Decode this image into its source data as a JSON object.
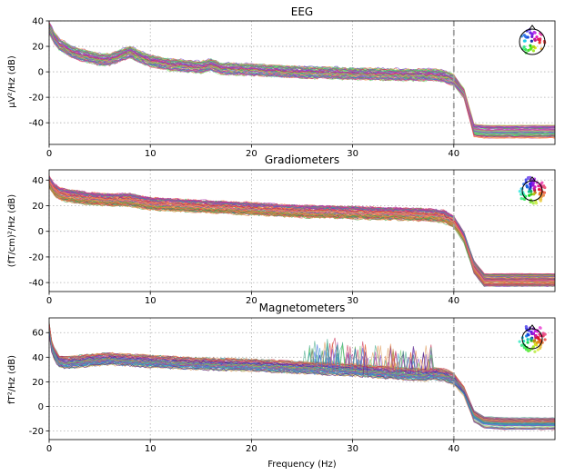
{
  "chart_data": [
    {
      "type": "line",
      "title": "EEG",
      "ylabel": "µV²/Hz (dB)",
      "xlabel": "",
      "xlim": [
        0,
        50
      ],
      "ylim": [
        -57,
        40
      ],
      "xticks": [
        0,
        10,
        20,
        30,
        40
      ],
      "yticks": [
        -40,
        -20,
        0,
        20,
        40
      ],
      "grid": true,
      "marker_x": 40,
      "legend": "topomap sensor-position inset, top-right",
      "traces": 60,
      "palette": [
        "#2ecc40",
        "#7fe07a",
        "#44bb77",
        "#ff8844",
        "#7744cc",
        "#cc2266",
        "#4466ee",
        "#aa33cc",
        "#99dd66",
        "#dd4488"
      ],
      "profile": {
        "x": [
          0,
          0.5,
          1,
          2,
          3,
          4,
          5,
          6,
          7,
          8,
          9,
          10,
          12,
          15,
          16,
          17,
          20,
          25,
          30,
          35,
          38,
          39,
          40,
          41,
          42,
          43,
          45,
          50
        ],
        "y": [
          33,
          25,
          20,
          15,
          12,
          10,
          8,
          8,
          11,
          14,
          10,
          7,
          4,
          2,
          4,
          1,
          0,
          -2,
          -3,
          -4,
          -4,
          -5,
          -8,
          -18,
          -46,
          -47,
          -47,
          -47
        ]
      },
      "spread_low": -3,
      "spread_high": 6
    },
    {
      "type": "line",
      "title": "Gradiometers",
      "ylabel": "(fT/cm)²/Hz (dB)",
      "xlabel": "",
      "xlim": [
        0,
        50
      ],
      "ylim": [
        -47,
        48
      ],
      "xticks": [
        0,
        10,
        20,
        30,
        40
      ],
      "yticks": [
        -40,
        -20,
        0,
        20,
        40
      ],
      "grid": true,
      "marker_x": 40,
      "legend": "topomap sensor-position inset, top-right",
      "traces": 80,
      "palette": [
        "#cc2244",
        "#ee6655",
        "#ff9966",
        "#dd8833",
        "#44aa44",
        "#6644cc",
        "#aa33aa",
        "#33aa99",
        "#cc4488",
        "#ee8844"
      ],
      "profile": {
        "x": [
          0,
          0.5,
          1,
          2,
          4,
          6,
          8,
          10,
          15,
          20,
          25,
          30,
          35,
          38,
          39,
          40,
          41,
          42,
          43,
          45,
          50
        ],
        "y": [
          38,
          32,
          29,
          27,
          25,
          24,
          24,
          21,
          19,
          17,
          15,
          14,
          13,
          12,
          11,
          7,
          -5,
          -28,
          -38,
          -38,
          -38
        ]
      },
      "spread_low": -4,
      "spread_high": 5
    },
    {
      "type": "line",
      "title": "Magnetometers",
      "ylabel": "fT²/Hz (dB)",
      "xlabel": "Frequency (Hz)",
      "xlim": [
        0,
        50
      ],
      "ylim": [
        -27,
        72
      ],
      "xticks": [
        0,
        10,
        20,
        30,
        40
      ],
      "yticks": [
        -20,
        0,
        20,
        40,
        60
      ],
      "grid": true,
      "marker_x": 40,
      "legend": "topomap sensor-position inset, top-right",
      "traces": 60,
      "palette": [
        "#7744cc",
        "#3366dd",
        "#ee8844",
        "#44aa88",
        "#cc3355",
        "#66cc66",
        "#aa44aa",
        "#3399cc",
        "#dd9955",
        "#552288"
      ],
      "profile": {
        "x": [
          0,
          0.3,
          1,
          2,
          4,
          6,
          8,
          10,
          15,
          20,
          25,
          30,
          35,
          37,
          38,
          39,
          40,
          41,
          42,
          43,
          45,
          50
        ],
        "y": [
          63,
          45,
          36,
          35,
          37,
          38,
          37,
          36,
          34,
          33,
          31,
          29,
          26,
          25,
          26,
          25,
          22,
          12,
          -8,
          -13,
          -14,
          -14
        ]
      },
      "spread_low": -4,
      "spread_high": 5
    }
  ]
}
